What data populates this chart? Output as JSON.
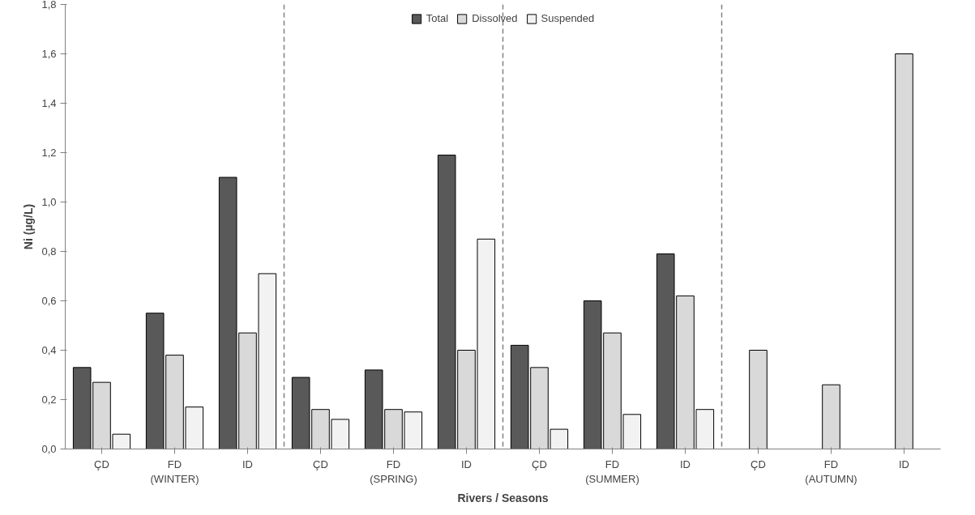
{
  "chart_data": {
    "type": "bar",
    "xlabel": "Rivers / Seasons",
    "ylabel": "Ni (µg/L)",
    "categories": [
      "ÇD",
      "FD\n(WINTER)",
      "ID",
      "ÇD",
      "FD\n(SPRING)",
      "ID",
      "ÇD",
      "FD\n(SUMMER)",
      "ID",
      "ÇD",
      "FD\n(AUTUMN)",
      "ID"
    ],
    "series": [
      {
        "name": "Total",
        "color": "#595959",
        "values": [
          0.33,
          0.55,
          1.1,
          0.29,
          0.32,
          1.19,
          0.42,
          0.6,
          0.79,
          null,
          null,
          null
        ]
      },
      {
        "name": "Dissolved",
        "color": "#d9d9d9",
        "values": [
          0.27,
          0.38,
          0.47,
          0.16,
          0.16,
          0.4,
          0.33,
          0.47,
          0.62,
          0.4,
          0.26,
          1.6
        ]
      },
      {
        "name": "Suspended",
        "color": "#f2f2f2",
        "values": [
          0.06,
          0.17,
          0.71,
          0.12,
          0.15,
          0.85,
          0.08,
          0.14,
          0.16,
          null,
          null,
          null
        ]
      }
    ],
    "ylim": [
      0,
      1.8
    ],
    "yticks": [
      {
        "value": 0,
        "label": "0,0"
      },
      {
        "value": 0.2,
        "label": "0,2"
      },
      {
        "value": 0.4,
        "label": "0,4"
      },
      {
        "value": 0.6,
        "label": "0,6"
      },
      {
        "value": 0.8,
        "label": "0,8"
      },
      {
        "value": 1.0,
        "label": "1,0"
      },
      {
        "value": 1.2,
        "label": "1,2"
      },
      {
        "value": 1.4,
        "label": "1,4"
      },
      {
        "value": 1.6,
        "label": "1,6"
      },
      {
        "value": 1.8,
        "label": "1,8"
      }
    ],
    "grid": false,
    "legend": "top"
  }
}
